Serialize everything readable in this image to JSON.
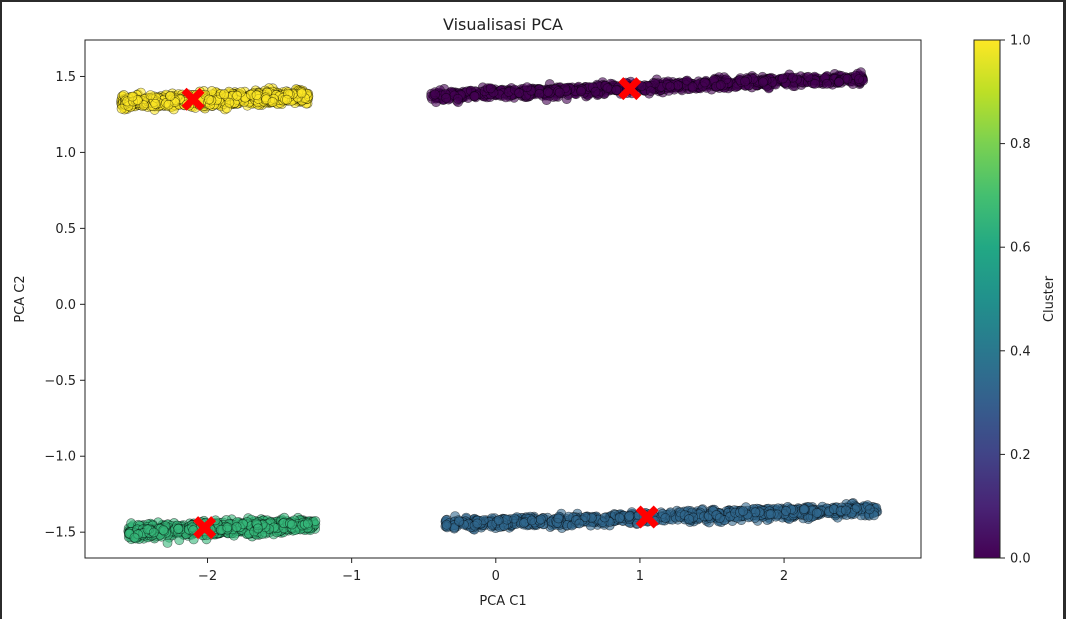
{
  "chart_data": {
    "type": "scatter",
    "title": "Visualisasi PCA",
    "xlabel": "PCA C1",
    "ylabel": "PCA C2",
    "xlim": [
      -2.85,
      2.95
    ],
    "ylim": [
      -1.67,
      1.74
    ],
    "xticks": [
      -2,
      -1,
      0,
      1,
      2
    ],
    "xtick_labels": [
      "−2",
      "−1",
      "0",
      "1",
      "2"
    ],
    "yticks": [
      -1.5,
      -1.0,
      -0.5,
      0.0,
      0.5,
      1.0,
      1.5
    ],
    "ytick_labels": [
      "−1.5",
      "−1.0",
      "−0.5",
      "0.0",
      "0.5",
      "1.0",
      "1.5"
    ],
    "grid": false,
    "colorbar": {
      "label": "Cluster",
      "range": [
        0.0,
        1.0
      ],
      "ticks": [
        0.0,
        0.2,
        0.4,
        0.6,
        0.8,
        1.0
      ],
      "tick_labels": [
        "0.0",
        "0.2",
        "0.4",
        "0.6",
        "0.8",
        "1.0"
      ],
      "colormap": "viridis"
    },
    "clusters": [
      {
        "cluster_value": 0.0,
        "color": "#440154",
        "x_range": [
          -0.45,
          2.55
        ],
        "y_base": [
          1.37,
          1.49
        ],
        "y_spread": 0.05,
        "centroid": [
          0.93,
          1.42
        ]
      },
      {
        "cluster_value": 1.0,
        "color": "#fde725",
        "x_range": [
          -2.6,
          -1.3
        ],
        "y_base": [
          1.33,
          1.37
        ],
        "y_spread": 0.06,
        "centroid": [
          -2.1,
          1.35
        ]
      },
      {
        "cluster_value": 0.333,
        "color": "#31688e",
        "x_range": [
          -0.35,
          2.65
        ],
        "y_base": [
          -1.45,
          -1.35
        ],
        "y_spread": 0.05,
        "centroid": [
          1.05,
          -1.4
        ]
      },
      {
        "cluster_value": 0.667,
        "color": "#35b779",
        "x_range": [
          -2.55,
          -1.25
        ],
        "y_base": [
          -1.5,
          -1.45
        ],
        "y_spread": 0.06,
        "centroid": [
          -2.02,
          -1.47
        ]
      }
    ],
    "centroid_marker": {
      "shape": "X",
      "color": "#ff0000"
    }
  }
}
